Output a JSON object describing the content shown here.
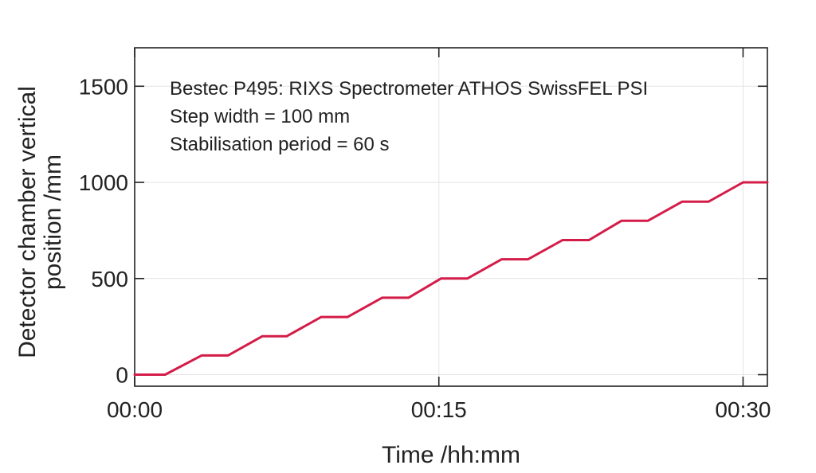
{
  "chart_data": {
    "type": "line",
    "title": "",
    "xlabel": "Time /hh:mm",
    "ylabel_lines": [
      "Detector chamber vertical",
      "position /mm"
    ],
    "annotations": [
      "Bestec P495: RIXS Spectrometer ATHOS SwissFEL PSI",
      "Step width = 100 mm",
      "Stabilisation period = 60 s"
    ],
    "x_unit": "minutes",
    "xlim": [
      0,
      31.2
    ],
    "ylim": [
      -60,
      1700
    ],
    "x_ticks": [
      {
        "value": 0,
        "label": "00:00"
      },
      {
        "value": 15,
        "label": "00:15"
      },
      {
        "value": 30,
        "label": "00:30"
      }
    ],
    "y_ticks": [
      {
        "value": 0,
        "label": "0"
      },
      {
        "value": 500,
        "label": "500"
      },
      {
        "value": 1000,
        "label": "1000"
      },
      {
        "value": 1500,
        "label": "1500"
      }
    ],
    "grid": true,
    "series": [
      {
        "color": "#d41c48",
        "x": [
          0,
          1.5,
          3.3,
          4.6,
          6.3,
          7.5,
          9.2,
          10.5,
          12.2,
          13.5,
          15.1,
          16.4,
          18.1,
          19.4,
          21.1,
          22.4,
          24.0,
          25.3,
          27.0,
          28.3,
          30.0,
          31.2
        ],
        "y": [
          0,
          0,
          100,
          100,
          200,
          200,
          300,
          300,
          400,
          400,
          500,
          500,
          600,
          600,
          700,
          700,
          800,
          800,
          900,
          900,
          1000,
          1000
        ]
      }
    ],
    "axis_color": "#222222",
    "grid_color": "#e3e3e3"
  }
}
